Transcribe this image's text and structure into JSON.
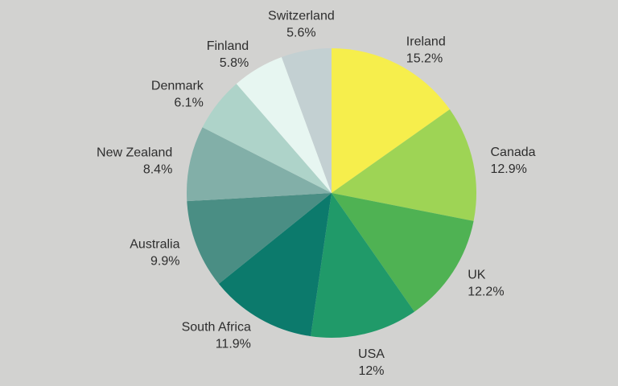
{
  "figure": {
    "background": "#d2d2d0",
    "text_color": "#2e2e2e"
  },
  "chart_data": {
    "type": "pie",
    "start_angle": "12-oclock",
    "direction": "clockwise",
    "labels_position": "outside",
    "legend": "none",
    "slices": [
      {
        "label": "Ireland",
        "value": 15.2,
        "pct_label": "15.2%",
        "color": "#f6ee4c"
      },
      {
        "label": "Canada",
        "value": 12.9,
        "pct_label": "12.9%",
        "color": "#9ed455"
      },
      {
        "label": "UK",
        "value": 12.2,
        "pct_label": "12.2%",
        "color": "#4fb253"
      },
      {
        "label": "USA",
        "value": 12.0,
        "pct_label": "12%",
        "color": "#209a69"
      },
      {
        "label": "South Africa",
        "value": 11.9,
        "pct_label": "11.9%",
        "color": "#0c7a6c"
      },
      {
        "label": "Australia",
        "value": 9.9,
        "pct_label": "9.9%",
        "color": "#4a8e84"
      },
      {
        "label": "New Zealand",
        "value": 8.4,
        "pct_label": "8.4%",
        "color": "#82afa8"
      },
      {
        "label": "Denmark",
        "value": 6.1,
        "pct_label": "6.1%",
        "color": "#aed3c9"
      },
      {
        "label": "Finland",
        "value": 5.8,
        "pct_label": "5.8%",
        "color": "#e7f6f1"
      },
      {
        "label": "Switzerland",
        "value": 5.6,
        "pct_label": "5.6%",
        "color": "#c3d0d2"
      }
    ]
  }
}
